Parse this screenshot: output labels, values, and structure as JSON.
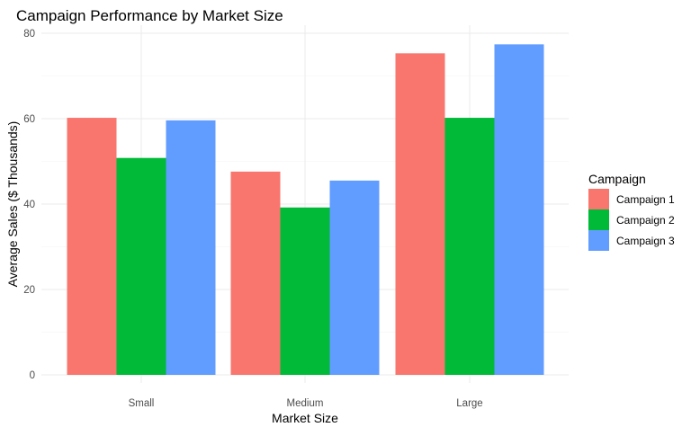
{
  "chart_data": {
    "type": "bar",
    "title": "Campaign Performance by Market Size",
    "xlabel": "Market Size",
    "ylabel": "Average Sales ($ Thousands)",
    "categories": [
      "Small",
      "Medium",
      "Large"
    ],
    "ylim": [
      0,
      80
    ],
    "yticks": [
      0,
      20,
      40,
      60,
      80
    ],
    "grid": true,
    "legend": {
      "title": "Campaign",
      "placement": "right"
    },
    "series": [
      {
        "name": "Campaign 1",
        "color": "#F8766D",
        "values": [
          60.2,
          47.6,
          75.3
        ]
      },
      {
        "name": "Campaign 2",
        "color": "#00BA38",
        "values": [
          50.8,
          39.2,
          60.2
        ]
      },
      {
        "name": "Campaign 3",
        "color": "#619CFF",
        "values": [
          59.6,
          45.5,
          77.4
        ]
      }
    ]
  }
}
